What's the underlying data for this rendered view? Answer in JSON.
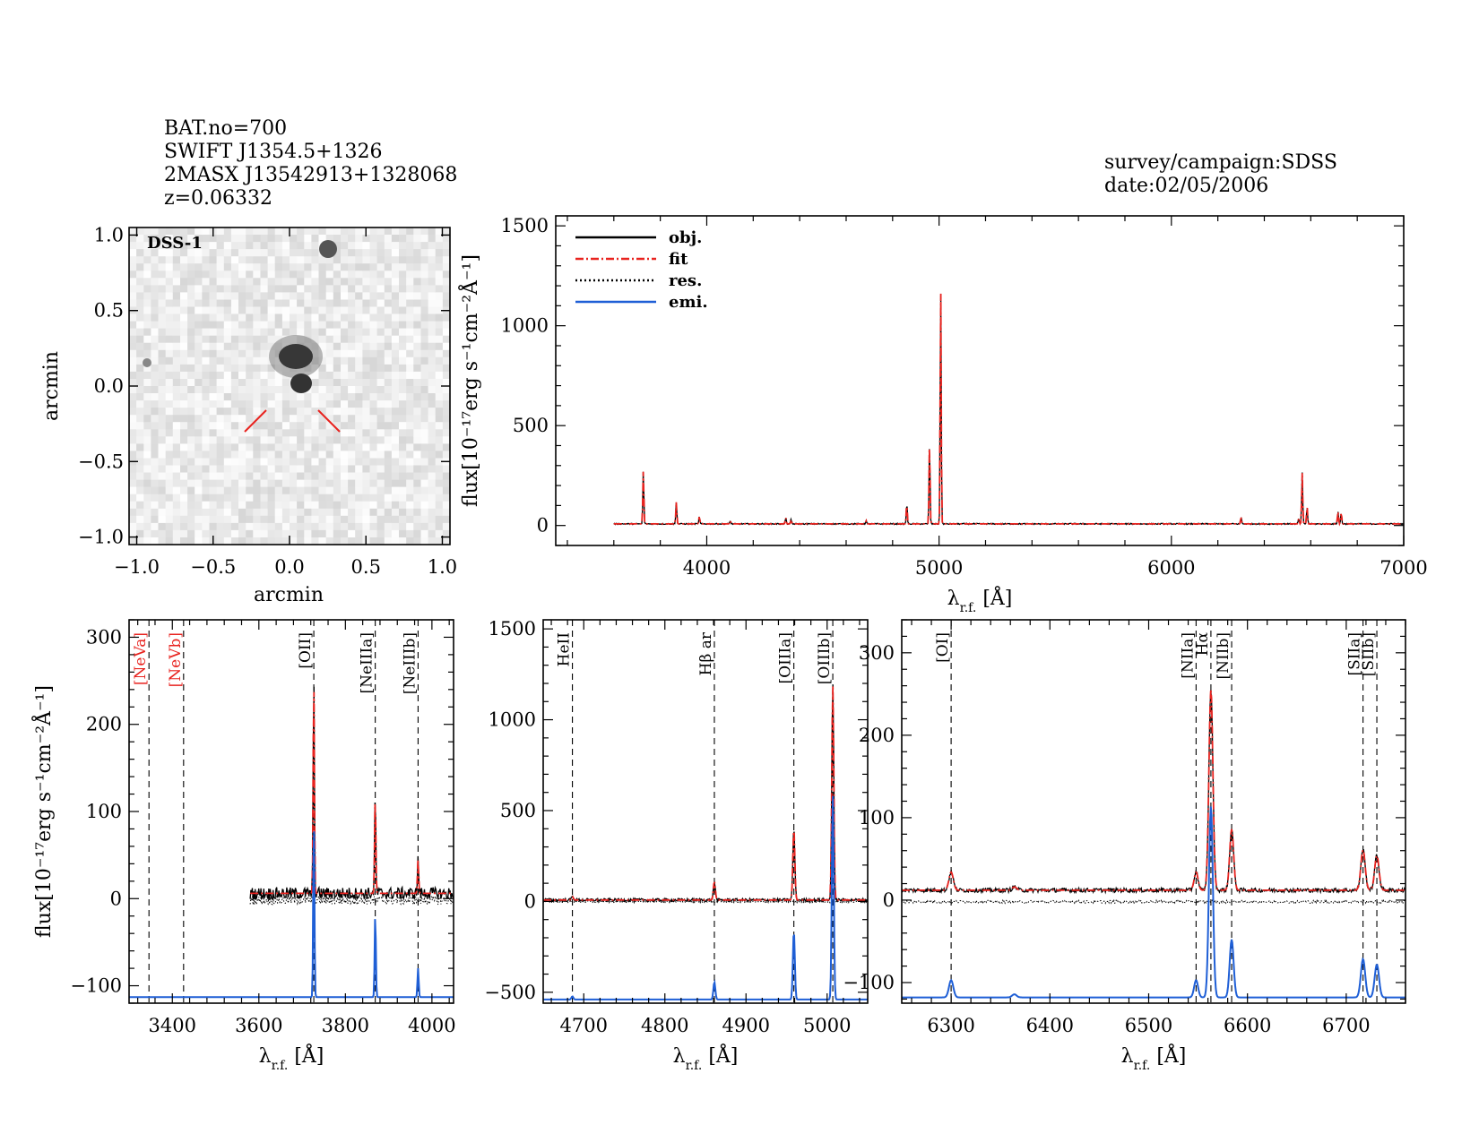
{
  "header": {
    "left": [
      "BAT.no=700",
      "SWIFT J1354.5+1326",
      "2MASX J13542913+1328068",
      "z=0.06332"
    ],
    "right": [
      "survey/campaign:SDSS",
      "date:02/05/2006"
    ]
  },
  "image_panel": {
    "label": "DSS-1",
    "xlabel": "arcmin",
    "ylabel": "arcmin",
    "xticks": [
      "−1.0",
      "−0.5",
      "0.0",
      "0.5",
      "1.0"
    ],
    "yticks": [
      "−1.0",
      "−0.5",
      "0.0",
      "0.5",
      "1.0"
    ]
  },
  "colors": {
    "obj": "#000000",
    "fit": "#e8231f",
    "res": "#000000",
    "emi": "#1f5fd6",
    "red_label": "#e8231f"
  },
  "axes_text": {
    "ylabel": "flux[10⁻¹⁷erg s⁻¹cm⁻²Å⁻¹]",
    "xlabel": "λ",
    "xlabel_sub": "r.f.",
    "xlabel_unit": " [Å]"
  },
  "chart_data": [
    {
      "type": "line",
      "id": "full",
      "xlim": [
        3350,
        7000
      ],
      "ylim": [
        -100,
        1550
      ],
      "xticks": [
        4000,
        5000,
        6000,
        7000
      ],
      "yticks": [
        0,
        500,
        1000,
        1500
      ],
      "continuum": 8,
      "x_start": 3600,
      "legend": [
        {
          "name": "obj.",
          "style": "solid",
          "color": "#000000"
        },
        {
          "name": "fit",
          "style": "dashdot",
          "color": "#e8231f"
        },
        {
          "name": "res.",
          "style": "dotted",
          "color": "#000000"
        },
        {
          "name": "emi.",
          "style": "solid",
          "color": "#1f5fd6"
        }
      ],
      "lines": [
        {
          "x": 3727,
          "peak": 270
        },
        {
          "x": 3869,
          "peak": 115
        },
        {
          "x": 3968,
          "peak": 40
        },
        {
          "x": 4101,
          "peak": 20
        },
        {
          "x": 4340,
          "peak": 35
        },
        {
          "x": 4363,
          "peak": 25
        },
        {
          "x": 4686,
          "peak": 20
        },
        {
          "x": 4861,
          "peak": 110
        },
        {
          "x": 4959,
          "peak": 410
        },
        {
          "x": 5007,
          "peak": 1190
        },
        {
          "x": 6300,
          "peak": 38
        },
        {
          "x": 6548,
          "peak": 30
        },
        {
          "x": 6563,
          "peak": 260
        },
        {
          "x": 6584,
          "peak": 90
        },
        {
          "x": 6717,
          "peak": 65
        },
        {
          "x": 6731,
          "peak": 60
        }
      ]
    },
    {
      "type": "line",
      "id": "zoom1",
      "xlim": [
        3300,
        4050
      ],
      "ylim": [
        -120,
        320
      ],
      "xticks": [
        3400,
        3600,
        3800,
        4000
      ],
      "yticks": [
        -100,
        0,
        100,
        200,
        300
      ],
      "continuum": 6,
      "x_start": 3580,
      "emi_base": -113,
      "emi_scale": 0.85,
      "lines": [
        {
          "x": 3727,
          "peak": 250,
          "sigma": 1.4
        },
        {
          "x": 3869,
          "peak": 115,
          "sigma": 1.4
        },
        {
          "x": 3968,
          "peak": 42,
          "sigma": 1.4
        }
      ],
      "markers": [
        {
          "x": 3346,
          "label": "[NeVa]",
          "color": "#e8231f"
        },
        {
          "x": 3426,
          "label": "[NeVb]",
          "color": "#e8231f"
        },
        {
          "x": 3727,
          "label": "[OII]",
          "color": "#000000"
        },
        {
          "x": 3869,
          "label": "[NeIIIa]",
          "color": "#000000"
        },
        {
          "x": 3968,
          "label": "[NeIIIb]",
          "color": "#000000"
        }
      ]
    },
    {
      "type": "line",
      "id": "zoom2",
      "xlim": [
        4650,
        5050
      ],
      "ylim": [
        -560,
        1550
      ],
      "xticks": [
        4700,
        4800,
        4900,
        5000
      ],
      "yticks": [
        -500,
        0,
        500,
        1000,
        1500
      ],
      "continuum": 8,
      "x_start": 4650,
      "emi_base": -540,
      "emi_scale": 0.95,
      "lines": [
        {
          "x": 4686,
          "peak": 22,
          "sigma": 1.2
        },
        {
          "x": 4861,
          "peak": 105,
          "sigma": 1.2
        },
        {
          "x": 4959,
          "peak": 400,
          "sigma": 1.2
        },
        {
          "x": 5007,
          "peak": 1190,
          "sigma": 1.2
        }
      ],
      "markers": [
        {
          "x": 4686,
          "label": "HeII",
          "color": "#000000"
        },
        {
          "x": 4861,
          "label": "Hβ ar",
          "color": "#000000"
        },
        {
          "x": 4959,
          "label": "[OIIIa]",
          "color": "#000000"
        },
        {
          "x": 5007,
          "label": "[OIIIb]",
          "color": "#000000"
        }
      ]
    },
    {
      "type": "line",
      "id": "zoom3",
      "xlim": [
        6250,
        6760
      ],
      "ylim": [
        -125,
        340
      ],
      "xticks": [
        6300,
        6400,
        6500,
        6600,
        6700
      ],
      "yticks": [
        -100,
        0,
        100,
        200,
        300
      ],
      "continuum": 12,
      "x_start": 6250,
      "emi_base": -118,
      "emi_scale": 0.95,
      "lines": [
        {
          "x": 6300,
          "peak": 28,
          "sigma": 2.2
        },
        {
          "x": 6364,
          "peak": 10,
          "sigma": 2.2
        },
        {
          "x": 6548,
          "peak": 28,
          "sigma": 2.0
        },
        {
          "x": 6563,
          "peak": 250,
          "sigma": 2.0
        },
        {
          "x": 6584,
          "peak": 80,
          "sigma": 2.0
        },
        {
          "x": 6717,
          "peak": 55,
          "sigma": 2.2
        },
        {
          "x": 6731,
          "peak": 48,
          "sigma": 2.2
        }
      ],
      "markers": [
        {
          "x": 6300,
          "label": "[OI]",
          "color": "#000000"
        },
        {
          "x": 6548,
          "label": "[NIIa]",
          "color": "#000000"
        },
        {
          "x": 6563,
          "label": "Hα",
          "color": "#000000"
        },
        {
          "x": 6584,
          "label": "[NIIb]",
          "color": "#000000"
        },
        {
          "x": 6717,
          "label": "[SIIa]",
          "color": "#000000"
        },
        {
          "x": 6731,
          "label": "[SIIb]",
          "color": "#000000"
        }
      ]
    }
  ]
}
